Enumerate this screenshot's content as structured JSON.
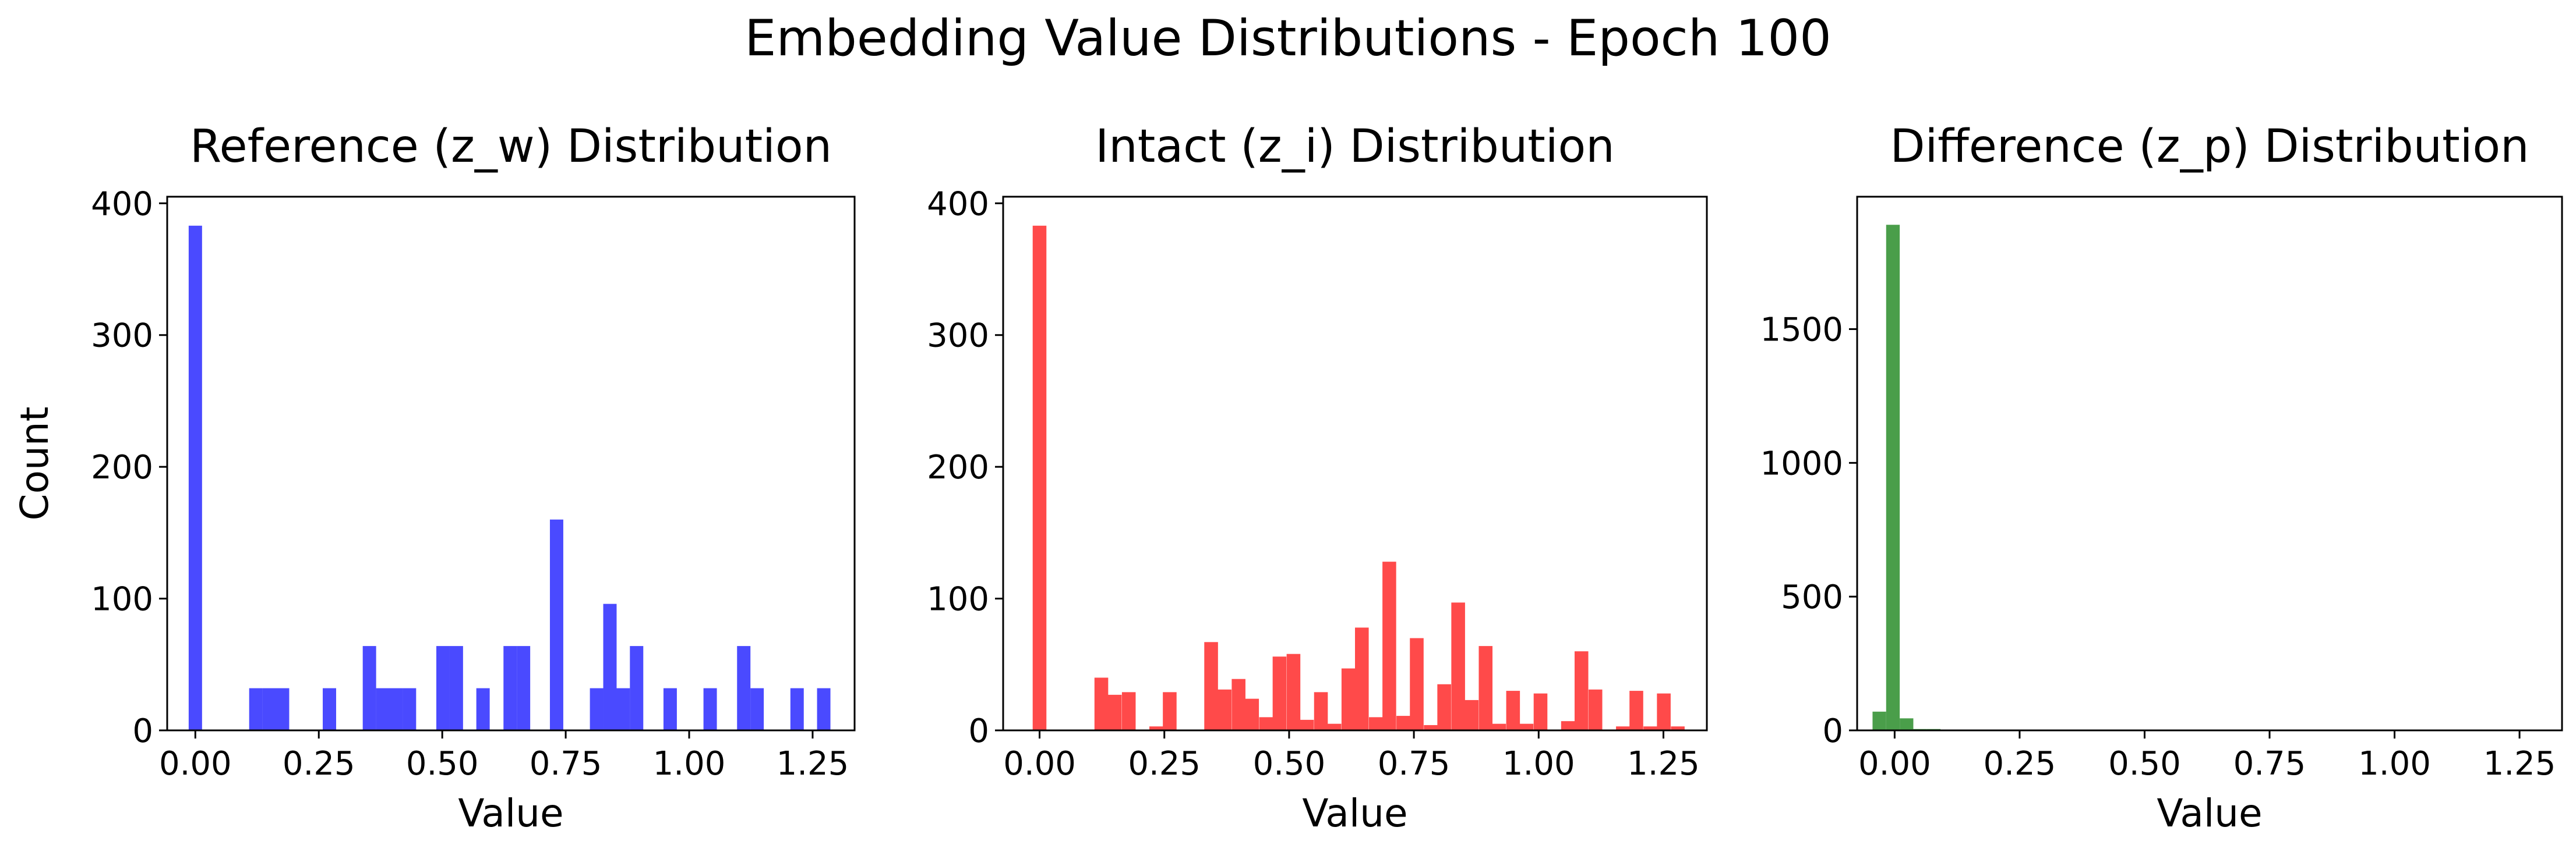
{
  "title": "Embedding Value Distributions - Epoch 100",
  "chart_data": [
    {
      "type": "bar",
      "title": "Reference (z_w) Distribution",
      "xlabel": "Value",
      "ylabel": "Count",
      "color": "#4a4aff",
      "xlim": [
        -0.057,
        1.335
      ],
      "ylim": [
        0,
        405
      ],
      "xticks": [
        0.0,
        0.25,
        0.5,
        0.75,
        1.0,
        1.25
      ],
      "xtick_labels": [
        "0.00",
        "0.25",
        "0.50",
        "0.75",
        "1.00",
        "1.25"
      ],
      "yticks": [
        0,
        100,
        200,
        300,
        400
      ],
      "ytick_labels": [
        "0",
        "100",
        "200",
        "300",
        "400"
      ],
      "bin_width": 0.0271,
      "bins": [
        {
          "x": -0.0135,
          "count": 383
        },
        {
          "x": 0.109,
          "count": 32
        },
        {
          "x": 0.136,
          "count": 32
        },
        {
          "x": 0.163,
          "count": 32
        },
        {
          "x": 0.258,
          "count": 32
        },
        {
          "x": 0.339,
          "count": 64
        },
        {
          "x": 0.366,
          "count": 32
        },
        {
          "x": 0.393,
          "count": 32
        },
        {
          "x": 0.42,
          "count": 32
        },
        {
          "x": 0.488,
          "count": 64
        },
        {
          "x": 0.515,
          "count": 64
        },
        {
          "x": 0.569,
          "count": 32
        },
        {
          "x": 0.624,
          "count": 64
        },
        {
          "x": 0.651,
          "count": 64
        },
        {
          "x": 0.718,
          "count": 160
        },
        {
          "x": 0.799,
          "count": 32
        },
        {
          "x": 0.826,
          "count": 96
        },
        {
          "x": 0.853,
          "count": 32
        },
        {
          "x": 0.88,
          "count": 64
        },
        {
          "x": 0.948,
          "count": 32
        },
        {
          "x": 1.029,
          "count": 32
        },
        {
          "x": 1.097,
          "count": 64
        },
        {
          "x": 1.124,
          "count": 32
        },
        {
          "x": 1.205,
          "count": 32
        },
        {
          "x": 1.259,
          "count": 32
        }
      ]
    },
    {
      "type": "bar",
      "title": "Intact (z_i) Distribution",
      "xlabel": "Value",
      "ylabel": "",
      "color": "#ff4a4a",
      "xlim": [
        -0.073,
        1.337
      ],
      "ylim": [
        0,
        405
      ],
      "xticks": [
        0.0,
        0.25,
        0.5,
        0.75,
        1.0,
        1.25
      ],
      "xtick_labels": [
        "0.00",
        "0.25",
        "0.50",
        "0.75",
        "1.00",
        "1.25"
      ],
      "yticks": [
        0,
        100,
        200,
        300,
        400
      ],
      "ytick_labels": [
        "0",
        "100",
        "200",
        "300",
        "400"
      ],
      "bin_width": 0.0275,
      "bins": [
        {
          "x": -0.0138,
          "count": 383
        },
        {
          "x": 0.11,
          "count": 40
        },
        {
          "x": 0.137,
          "count": 27
        },
        {
          "x": 0.165,
          "count": 29
        },
        {
          "x": 0.22,
          "count": 3
        },
        {
          "x": 0.247,
          "count": 29
        },
        {
          "x": 0.33,
          "count": 67
        },
        {
          "x": 0.357,
          "count": 31
        },
        {
          "x": 0.385,
          "count": 39
        },
        {
          "x": 0.412,
          "count": 24
        },
        {
          "x": 0.44,
          "count": 10
        },
        {
          "x": 0.467,
          "count": 56
        },
        {
          "x": 0.495,
          "count": 58
        },
        {
          "x": 0.522,
          "count": 8
        },
        {
          "x": 0.55,
          "count": 29
        },
        {
          "x": 0.577,
          "count": 5
        },
        {
          "x": 0.605,
          "count": 47
        },
        {
          "x": 0.632,
          "count": 78
        },
        {
          "x": 0.66,
          "count": 10
        },
        {
          "x": 0.687,
          "count": 128
        },
        {
          "x": 0.715,
          "count": 11
        },
        {
          "x": 0.742,
          "count": 70
        },
        {
          "x": 0.77,
          "count": 4
        },
        {
          "x": 0.797,
          "count": 35
        },
        {
          "x": 0.825,
          "count": 97
        },
        {
          "x": 0.852,
          "count": 23
        },
        {
          "x": 0.88,
          "count": 64
        },
        {
          "x": 0.907,
          "count": 5
        },
        {
          "x": 0.935,
          "count": 30
        },
        {
          "x": 0.962,
          "count": 5
        },
        {
          "x": 0.99,
          "count": 28
        },
        {
          "x": 1.045,
          "count": 7
        },
        {
          "x": 1.072,
          "count": 60
        },
        {
          "x": 1.1,
          "count": 31
        },
        {
          "x": 1.155,
          "count": 3
        },
        {
          "x": 1.182,
          "count": 30
        },
        {
          "x": 1.21,
          "count": 3
        },
        {
          "x": 1.237,
          "count": 28
        },
        {
          "x": 1.265,
          "count": 3
        }
      ]
    },
    {
      "type": "bar",
      "title": "Difference (z_p) Distribution",
      "xlabel": "Value",
      "ylabel": "",
      "color": "#4a9e4a",
      "xlim": [
        -0.075,
        1.335
      ],
      "ylim": [
        0,
        1995
      ],
      "xticks": [
        0.0,
        0.25,
        0.5,
        0.75,
        1.0,
        1.25
      ],
      "xtick_labels": [
        "0.00",
        "0.25",
        "0.50",
        "0.75",
        "1.00",
        "1.25"
      ],
      "yticks": [
        0,
        500,
        1000,
        1500
      ],
      "ytick_labels": [
        "0",
        "500",
        "1000",
        "1500"
      ],
      "bin_width": 0.0272,
      "bins": [
        {
          "x": -0.0442,
          "count": 70
        },
        {
          "x": -0.017,
          "count": 1890
        },
        {
          "x": 0.0102,
          "count": 45
        },
        {
          "x": 0.0374,
          "count": 5
        },
        {
          "x": 0.0646,
          "count": 5
        },
        {
          "x": 0.0918,
          "count": 3
        }
      ]
    }
  ]
}
